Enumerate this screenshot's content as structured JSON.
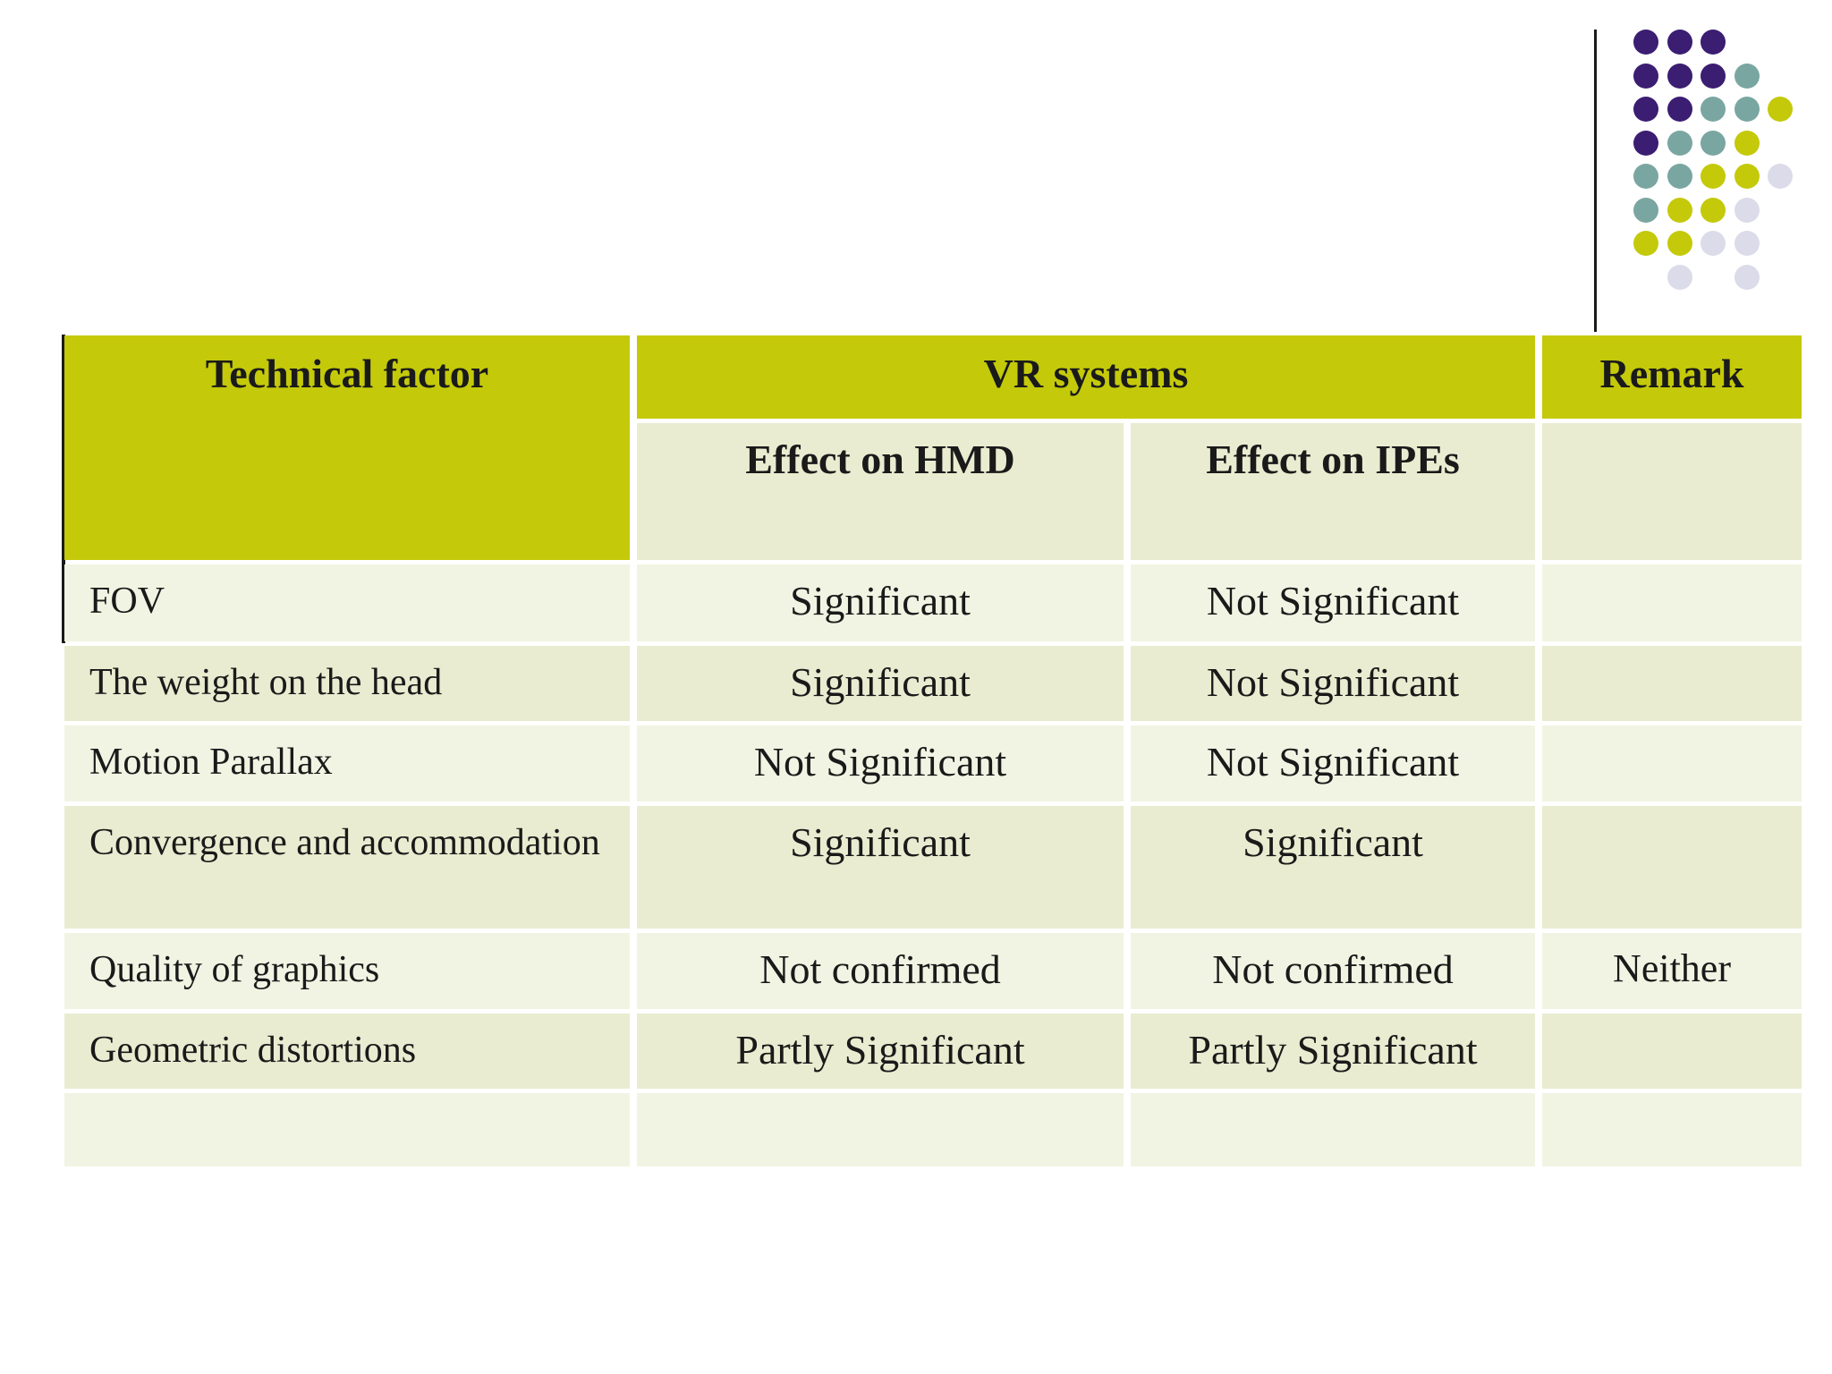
{
  "colors": {
    "olive": "#c4c90a",
    "row_light": "#f2f4e3",
    "row_dark": "#e9ecd0",
    "text": "#1a1a1a",
    "line_black": "#1a1a1a",
    "purple": "#3b1d72",
    "teal": "#7aa6a1",
    "lavender": "#dcdbe9"
  },
  "decoration": {
    "grid": [
      [
        "purple",
        "purple",
        "purple",
        null,
        null
      ],
      [
        "purple",
        "purple",
        "purple",
        "teal",
        null
      ],
      [
        "purple",
        "purple",
        "teal",
        "teal",
        "olive"
      ],
      [
        "purple",
        "teal",
        "teal",
        "olive",
        null
      ],
      [
        "teal",
        "teal",
        "olive",
        "olive",
        "lavender"
      ],
      [
        "teal",
        "olive",
        "olive",
        "lavender",
        null
      ],
      [
        "olive",
        "olive",
        "lavender",
        "lavender",
        null
      ],
      [
        null,
        "lavender",
        null,
        "lavender",
        null
      ]
    ]
  },
  "table": {
    "headers": {
      "technical_factor": "Technical factor",
      "vr_systems": "VR systems",
      "remark": "Remark",
      "effect_hmd": "Effect on HMD",
      "effect_ipes": "Effect on IPEs"
    },
    "rows": [
      {
        "factor": "FOV",
        "hmd": "Significant",
        "ipes": "Not Significant",
        "remark": ""
      },
      {
        "factor": "The weight on the head",
        "hmd": "Significant",
        "ipes": "Not Significant",
        "remark": ""
      },
      {
        "factor": "Motion Parallax",
        "hmd": "Not Significant",
        "ipes": "Not Significant",
        "remark": ""
      },
      {
        "factor": "Convergence and accommodation",
        "hmd": "Significant",
        "ipes": "Significant",
        "remark": ""
      },
      {
        "factor": "Quality of graphics",
        "hmd": "Not confirmed",
        "ipes": "Not confirmed",
        "remark": "Neither"
      },
      {
        "factor": "Geometric distortions",
        "hmd": "Partly Significant",
        "ipes": "Partly Significant",
        "remark": ""
      },
      {
        "factor": "",
        "hmd": "",
        "ipes": "",
        "remark": ""
      }
    ]
  }
}
